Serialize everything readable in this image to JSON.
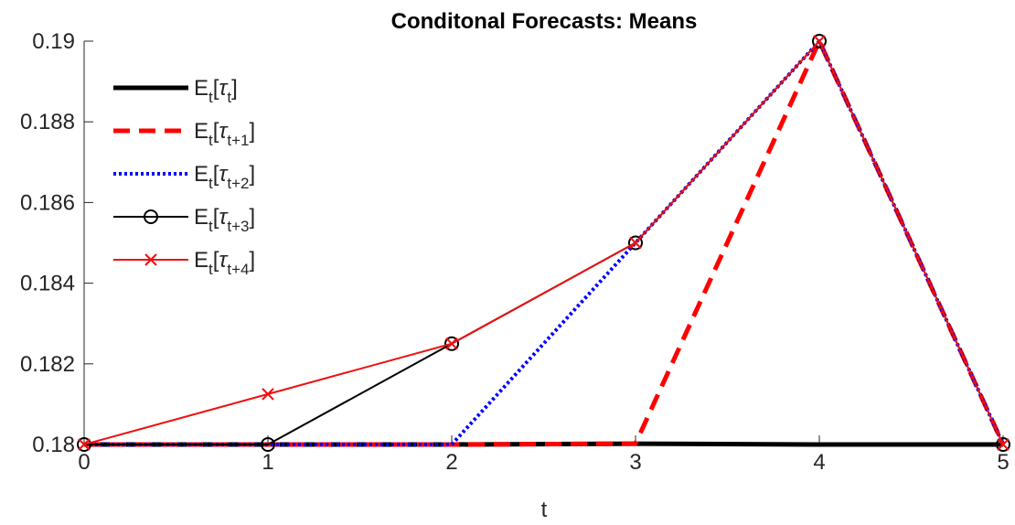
{
  "chart_data": {
    "type": "line",
    "title": "Conditonal Forecasts: Means",
    "xlabel": "t",
    "ylabel": "",
    "xlim": [
      0,
      5
    ],
    "ylim": [
      0.18,
      0.19
    ],
    "xticks": [
      "0",
      "1",
      "2",
      "3",
      "4",
      "5"
    ],
    "yticks": [
      "0.18",
      "0.182",
      "0.184",
      "0.186",
      "0.188",
      "0.19"
    ],
    "grid": false,
    "legend_position": "top-left",
    "x": [
      0,
      1,
      2,
      3,
      4,
      5
    ],
    "series": [
      {
        "name": "E_t[τ_t]",
        "legend_base": "E",
        "legend_sub1": "t",
        "legend_sym": "τ",
        "legend_sub2": "t",
        "values": [
          0.18,
          0.18,
          0.18,
          0.18002,
          0.18,
          0.18
        ],
        "color": "#000000",
        "style": "solid-thick",
        "marker": "none"
      },
      {
        "name": "E_t[τ_t+1]",
        "legend_base": "E",
        "legend_sub1": "t",
        "legend_sym": "τ",
        "legend_sub2": "t+1",
        "values": [
          0.18,
          0.18,
          0.18,
          0.18002,
          0.19,
          0.18
        ],
        "color": "#ff0000",
        "style": "dashed",
        "marker": "none"
      },
      {
        "name": "E_t[τ_t+2]",
        "legend_base": "E",
        "legend_sub1": "t",
        "legend_sym": "τ",
        "legend_sub2": "t+2",
        "values": [
          0.18,
          0.18,
          0.18,
          0.185,
          0.19,
          0.18
        ],
        "color": "#0000ff",
        "style": "dotted",
        "marker": "none"
      },
      {
        "name": "E_t[τ_t+3]",
        "legend_base": "E",
        "legend_sub1": "t",
        "legend_sym": "τ",
        "legend_sub2": "t+3",
        "values": [
          0.18,
          0.18,
          0.1825,
          0.185,
          0.19,
          0.18
        ],
        "color": "#000000",
        "style": "solid",
        "marker": "circle"
      },
      {
        "name": "E_t[τ_t+4]",
        "legend_base": "E",
        "legend_sub1": "t",
        "legend_sym": "τ",
        "legend_sub2": "t+4",
        "values": [
          0.18,
          0.18125,
          0.1825,
          0.185,
          0.19,
          0.18
        ],
        "color": "#ee1111",
        "style": "solid",
        "marker": "x"
      }
    ]
  }
}
